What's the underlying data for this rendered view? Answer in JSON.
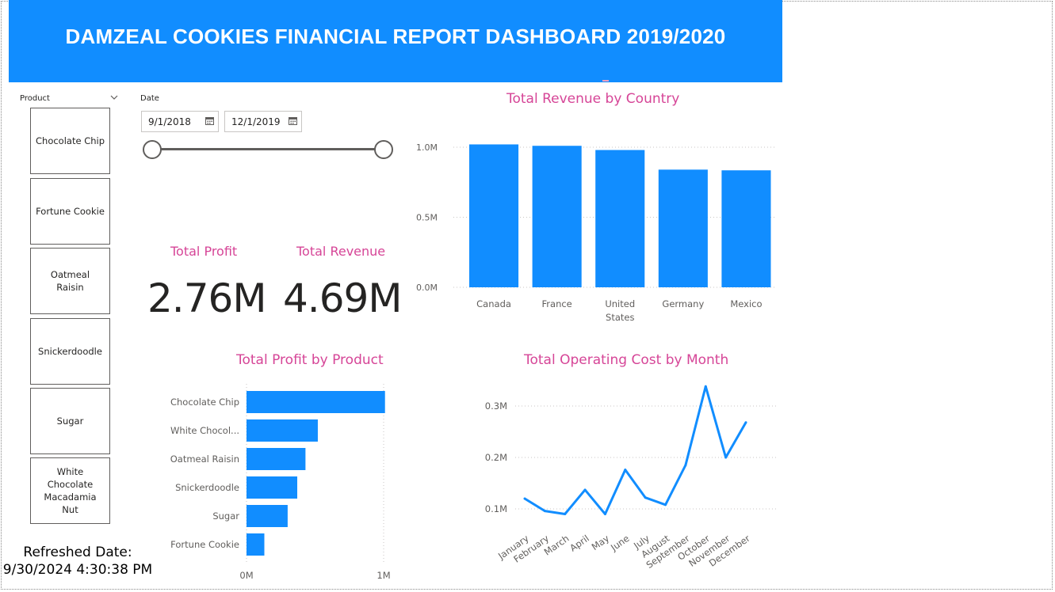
{
  "header": {
    "title": "DAMZEAL COOKIES FINANCIAL REPORT DASHBOARD 2019/2020"
  },
  "colors": {
    "header_bg": "#118DFF",
    "bar": "#118DFF",
    "title_pink": "#d64597"
  },
  "product_slicer": {
    "title": "Product",
    "items": [
      "Chocolate Chip",
      "Fortune Cookie",
      "Oatmeal Raisin",
      "Snickerdoodle",
      "Sugar",
      "White Chocolate Macadamia Nut"
    ]
  },
  "date_slicer": {
    "title": "Date",
    "start": "9/1/2018",
    "end": "12/1/2019"
  },
  "kpis": {
    "profit": {
      "label": "Total Profit",
      "value": "2.76M"
    },
    "revenue": {
      "label": "Total Revenue",
      "value": "4.69M"
    }
  },
  "refreshed": {
    "label": "Refreshed Date:",
    "value": "9/30/2024 4:30:38 PM"
  },
  "chart_data": [
    {
      "id": "revenue_by_country",
      "type": "bar",
      "title": "Total Revenue by Country",
      "categories": [
        "Canada",
        "France",
        "United States",
        "Germany",
        "Mexico"
      ],
      "category_lines": [
        [
          "Canada"
        ],
        [
          "France"
        ],
        [
          "United",
          "States"
        ],
        [
          "Germany"
        ],
        [
          "Mexico"
        ]
      ],
      "values": [
        1.02,
        1.01,
        0.98,
        0.84,
        0.835
      ],
      "unit": "M",
      "ylim": [
        0,
        1.0
      ],
      "yticks": [
        "0.0M",
        "0.5M",
        "1.0M"
      ],
      "ytick_values": [
        0,
        0.5,
        1.0
      ],
      "grid": true
    },
    {
      "id": "profit_by_product",
      "type": "bar",
      "orientation": "horizontal",
      "title": "Total Profit by Product",
      "categories": [
        "Chocolate Chip",
        "White Chocol...",
        "Oatmeal Raisin",
        "Snickerdoodle",
        "Sugar",
        "Fortune Cookie"
      ],
      "values": [
        1.01,
        0.52,
        0.43,
        0.37,
        0.3,
        0.13
      ],
      "unit": "M",
      "xlim": [
        0,
        1.0
      ],
      "xticks": [
        "0M",
        "1M"
      ],
      "xtick_values": [
        0,
        1.0
      ],
      "grid": true
    },
    {
      "id": "operating_cost_by_month",
      "type": "line",
      "title": "Total Operating Cost by Month",
      "x": [
        "January",
        "February",
        "March",
        "April",
        "May",
        "June",
        "July",
        "August",
        "September",
        "October",
        "November",
        "December"
      ],
      "values": [
        0.12,
        0.096,
        0.09,
        0.137,
        0.09,
        0.176,
        0.122,
        0.108,
        0.185,
        0.338,
        0.2,
        0.268
      ],
      "unit": "M",
      "yticks": [
        "0.1M",
        "0.2M",
        "0.3M"
      ],
      "ytick_values": [
        0.1,
        0.2,
        0.3
      ],
      "grid": true
    }
  ]
}
